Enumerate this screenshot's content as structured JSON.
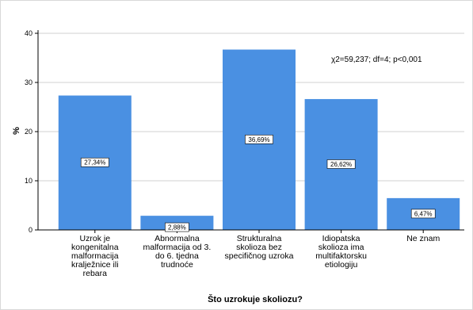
{
  "chart_data": {
    "type": "bar",
    "title": "",
    "xlabel": "Što uzrokuje skoliozu?",
    "ylabel": "%",
    "ylim": [
      0,
      40
    ],
    "yticks": [
      0,
      10,
      20,
      30,
      40
    ],
    "grid": "horizontal",
    "bar_color": "#4a90e2",
    "categories": [
      [
        "Uzrok je",
        "kongenitalna",
        "malformacija",
        "kralježnice ili",
        "rebara"
      ],
      [
        "Abnormalna",
        "malformacija od 3.",
        "do 6. tjedna",
        "trudnoće"
      ],
      [
        "Strukturalna",
        "skolioza bez",
        "specifičnog uzroka"
      ],
      [
        "Idiopatska",
        "skolioza ima",
        "multifaktorsku",
        "etiologiju"
      ],
      [
        "Ne znam"
      ]
    ],
    "values": [
      27.34,
      2.88,
      36.69,
      26.62,
      6.47
    ],
    "data_labels": [
      "27,34%",
      "2,88%",
      "36,69%",
      "26,62%",
      "6,47%"
    ],
    "annotation": "χ2=59,237; df=4; p<0,001"
  }
}
